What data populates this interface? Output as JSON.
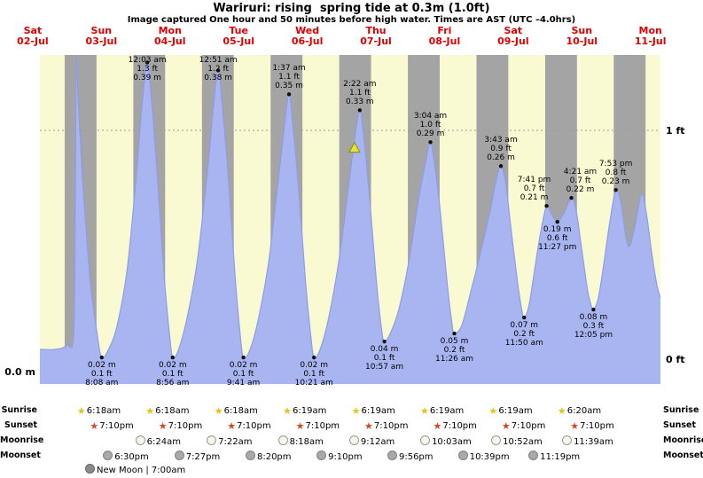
{
  "title": "Wariruri: rising  spring tide at 0.3m (1.0ft)",
  "subtitle": "Image captured One hour and 50 minutes before high water. Times are AST (UTC –4.0hrs)",
  "axis": {
    "left_zero": "0.0 m",
    "right_one_ft": "1 ft",
    "right_zero_ft": "0 ft"
  },
  "days": [
    {
      "name": "Sat",
      "date": "02-Jul"
    },
    {
      "name": "Sun",
      "date": "03-Jul"
    },
    {
      "name": "Mon",
      "date": "04-Jul"
    },
    {
      "name": "Tue",
      "date": "05-Jul"
    },
    {
      "name": "Wed",
      "date": "06-Jul"
    },
    {
      "name": "Thu",
      "date": "07-Jul"
    },
    {
      "name": "Fri",
      "date": "08-Jul"
    },
    {
      "name": "Sat",
      "date": "09-Jul"
    },
    {
      "name": "Sun",
      "date": "10-Jul"
    },
    {
      "name": "Mon",
      "date": "11-Jul"
    }
  ],
  "chart_data": {
    "type": "area",
    "title": "Wariruri: rising spring tide at 0.3m (1.0ft)",
    "x_axis": {
      "unit": "days",
      "labels": [
        "Sat 02-Jul",
        "Sun 03-Jul",
        "Mon 04-Jul",
        "Tue 05-Jul",
        "Wed 06-Jul",
        "Thu 07-Jul",
        "Fri 08-Jul",
        "Sat 09-Jul",
        "Sun 10-Jul",
        "Mon 11-Jul"
      ]
    },
    "y_axis": {
      "left_unit": "m",
      "right_unit": "ft",
      "left_ticks": [
        "0.0 m"
      ],
      "right_ticks": [
        "1 ft",
        "0 ft"
      ],
      "range_m": [
        0,
        0.41
      ]
    },
    "x_domain_hours_from_sat02_midnight": [
      10.5,
      227.5
    ],
    "high_tides": [
      {
        "day": 2,
        "date": "04-Jul",
        "time": "12:03 am",
        "ft": "1.3 ft",
        "m": "0.39 m",
        "height_m": 0.39
      },
      {
        "day": 3,
        "date": "05-Jul",
        "time": "12:51 am",
        "ft": "1.2 ft",
        "m": "0.38 m",
        "height_m": 0.38
      },
      {
        "day": 4,
        "date": "06-Jul",
        "time": "1:37 am",
        "ft": "1.1 ft",
        "m": "0.35 m",
        "height_m": 0.35
      },
      {
        "day": 5,
        "date": "07-Jul",
        "time": "2:22 am",
        "ft": "1.1 ft",
        "m": "0.33 m",
        "height_m": 0.33
      },
      {
        "day": 6,
        "date": "08-Jul",
        "time": "3:04 am",
        "ft": "1.0 ft",
        "m": "0.29 m",
        "height_m": 0.29
      },
      {
        "day": 7,
        "date": "09-Jul",
        "time": "3:43 am",
        "ft": "0.9 ft",
        "m": "0.26 m",
        "height_m": 0.26
      },
      {
        "day": 7,
        "date": "09-Jul",
        "time": "7:41 pm",
        "ft": "0.7 ft",
        "m": "0.21 m",
        "height_m": 0.21
      },
      {
        "day": 8,
        "date": "10-Jul",
        "time": "4:21 am",
        "ft": "0.7 ft",
        "m": "0.22 m",
        "height_m": 0.22
      },
      {
        "day": 8,
        "date": "10-Jul",
        "time": "7:53 pm",
        "ft": "0.8 ft",
        "m": "0.23 m",
        "height_m": 0.23
      }
    ],
    "low_tides": [
      {
        "day": 1,
        "date": "03-Jul",
        "time": "8:08 am",
        "ft": "0.1 ft",
        "m": "0.02 m",
        "height_m": 0.02
      },
      {
        "day": 2,
        "date": "04-Jul",
        "time": "8:56 am",
        "ft": "0.1 ft",
        "m": "0.02 m",
        "height_m": 0.02
      },
      {
        "day": 3,
        "date": "05-Jul",
        "time": "9:41 am",
        "ft": "0.1 ft",
        "m": "0.02 m",
        "height_m": 0.02
      },
      {
        "day": 4,
        "date": "06-Jul",
        "time": "10:21 am",
        "ft": "0.1 ft",
        "m": "0.02 m",
        "height_m": 0.02
      },
      {
        "day": 5,
        "date": "07-Jul",
        "time": "10:57 am",
        "ft": "0.1 ft",
        "m": "0.04 m",
        "height_m": 0.04
      },
      {
        "day": 6,
        "date": "08-Jul",
        "time": "11:26 am",
        "ft": "0.2 ft",
        "m": "0.05 m",
        "height_m": 0.05
      },
      {
        "day": 7,
        "date": "09-Jul",
        "time": "11:50 am",
        "ft": "0.2 ft",
        "m": "0.07 m",
        "height_m": 0.07
      },
      {
        "day": 7,
        "date": "09-Jul",
        "time": "11:27 pm",
        "ft": "0.6 ft",
        "m": "0.19 m",
        "height_m": 0.19
      },
      {
        "day": 8,
        "date": "10-Jul",
        "time": "12:05 pm",
        "ft": "0.3 ft",
        "m": "0.08 m",
        "height_m": 0.08
      }
    ],
    "capture_marker": {
      "hour": 120.53,
      "height_m": 0.283,
      "note": "1h50m before 2:22 am high water"
    },
    "curve_points_hour_m": [
      [
        10.5,
        0.03
      ],
      [
        16,
        0.03
      ],
      [
        20,
        0.035
      ],
      [
        22.3,
        0.05
      ],
      [
        22.9,
        0.22
      ],
      [
        23.22,
        0.395
      ],
      [
        23.9,
        0.34
      ],
      [
        25.5,
        0.24
      ],
      [
        28,
        0.12
      ],
      [
        30.5,
        0.05
      ],
      [
        32.13,
        0.02
      ],
      [
        34.5,
        0.03
      ],
      [
        37.5,
        0.06
      ],
      [
        41,
        0.13
      ],
      [
        44,
        0.24
      ],
      [
        46.3,
        0.34
      ],
      [
        48.05,
        0.39
      ],
      [
        49.5,
        0.345
      ],
      [
        51.5,
        0.25
      ],
      [
        54,
        0.12
      ],
      [
        55.8,
        0.05
      ],
      [
        56.93,
        0.02
      ],
      [
        59,
        0.03
      ],
      [
        62,
        0.07
      ],
      [
        65.5,
        0.14
      ],
      [
        69,
        0.25
      ],
      [
        71.2,
        0.335
      ],
      [
        72.85,
        0.38
      ],
      [
        74.3,
        0.335
      ],
      [
        76.3,
        0.25
      ],
      [
        78.8,
        0.12
      ],
      [
        80.5,
        0.05
      ],
      [
        81.68,
        0.02
      ],
      [
        84,
        0.03
      ],
      [
        87,
        0.07
      ],
      [
        90.5,
        0.14
      ],
      [
        93.8,
        0.24
      ],
      [
        96,
        0.31
      ],
      [
        97.62,
        0.35
      ],
      [
        99,
        0.31
      ],
      [
        101,
        0.23
      ],
      [
        103.5,
        0.11
      ],
      [
        105.3,
        0.045
      ],
      [
        106.35,
        0.02
      ],
      [
        108.5,
        0.03
      ],
      [
        111.5,
        0.07
      ],
      [
        115,
        0.14
      ],
      [
        118.3,
        0.23
      ],
      [
        120.6,
        0.295
      ],
      [
        122.37,
        0.33
      ],
      [
        123.8,
        0.295
      ],
      [
        125.8,
        0.22
      ],
      [
        128.3,
        0.11
      ],
      [
        130,
        0.055
      ],
      [
        130.95,
        0.04
      ],
      [
        133,
        0.05
      ],
      [
        136,
        0.08
      ],
      [
        139.5,
        0.14
      ],
      [
        143,
        0.22
      ],
      [
        145.4,
        0.265
      ],
      [
        147.07,
        0.29
      ],
      [
        148.6,
        0.26
      ],
      [
        150.6,
        0.2
      ],
      [
        153,
        0.11
      ],
      [
        154.7,
        0.06
      ],
      [
        155.43,
        0.05
      ],
      [
        158,
        0.06
      ],
      [
        161,
        0.1
      ],
      [
        164.5,
        0.15
      ],
      [
        168,
        0.205
      ],
      [
        170.2,
        0.245
      ],
      [
        171.72,
        0.26
      ],
      [
        173.3,
        0.24
      ],
      [
        175.3,
        0.18
      ],
      [
        177.5,
        0.115
      ],
      [
        179,
        0.08
      ],
      [
        179.83,
        0.07
      ],
      [
        181.5,
        0.085
      ],
      [
        183.5,
        0.13
      ],
      [
        185.5,
        0.175
      ],
      [
        187.68,
        0.21
      ],
      [
        189.4,
        0.2
      ],
      [
        191.45,
        0.19
      ],
      [
        193.6,
        0.2
      ],
      [
        196.35,
        0.22
      ],
      [
        198,
        0.205
      ],
      [
        200,
        0.155
      ],
      [
        202,
        0.105
      ],
      [
        203.3,
        0.085
      ],
      [
        204.08,
        0.08
      ],
      [
        205.8,
        0.095
      ],
      [
        207.8,
        0.14
      ],
      [
        209.8,
        0.19
      ],
      [
        211.88,
        0.23
      ],
      [
        213.6,
        0.215
      ],
      [
        215.5,
        0.17
      ],
      [
        216.8,
        0.16
      ],
      [
        218.6,
        0.185
      ],
      [
        220.9,
        0.225
      ],
      [
        222.6,
        0.2
      ],
      [
        224.5,
        0.15
      ],
      [
        226.3,
        0.11
      ],
      [
        227.5,
        0.095
      ]
    ]
  },
  "almanac": {
    "sunrise": {
      "label": "Sunrise",
      "events": [
        {
          "day": 1,
          "time": "6:18am"
        },
        {
          "day": 2,
          "time": "6:18am"
        },
        {
          "day": 3,
          "time": "6:18am"
        },
        {
          "day": 4,
          "time": "6:19am"
        },
        {
          "day": 5,
          "time": "6:19am"
        },
        {
          "day": 6,
          "time": "6:19am"
        },
        {
          "day": 7,
          "time": "6:19am"
        },
        {
          "day": 8,
          "time": "6:20am"
        }
      ]
    },
    "sunset": {
      "label": "Sunset",
      "events": [
        {
          "day": 1,
          "time": "7:10pm"
        },
        {
          "day": 2,
          "time": "7:10pm"
        },
        {
          "day": 3,
          "time": "7:10pm"
        },
        {
          "day": 4,
          "time": "7:10pm"
        },
        {
          "day": 5,
          "time": "7:10pm"
        },
        {
          "day": 6,
          "time": "7:10pm"
        },
        {
          "day": 7,
          "time": "7:10pm"
        },
        {
          "day": 8,
          "time": "7:10pm"
        }
      ]
    },
    "moonrise": {
      "label": "Moonrise",
      "events": [
        {
          "day": 2,
          "time": "6:24am"
        },
        {
          "day": 3,
          "time": "7:22am"
        },
        {
          "day": 4,
          "time": "8:18am"
        },
        {
          "day": 5,
          "time": "9:12am"
        },
        {
          "day": 6,
          "time": "10:03am"
        },
        {
          "day": 7,
          "time": "10:52am"
        },
        {
          "day": 8,
          "time": "11:39am"
        }
      ]
    },
    "moonset": {
      "label": "Moonset",
      "events": [
        {
          "day": 1,
          "time": "6:30pm"
        },
        {
          "day": 2,
          "time": "7:27pm"
        },
        {
          "day": 3,
          "time": "8:20pm"
        },
        {
          "day": 4,
          "time": "9:10pm"
        },
        {
          "day": 5,
          "time": "9:56pm"
        },
        {
          "day": 6,
          "time": "10:39pm"
        },
        {
          "day": 7,
          "time": "11:19pm"
        }
      ]
    },
    "new_moon_label": "New Moon | 7:00am"
  },
  "colors": {
    "night_band": "#a4a4a4",
    "day_band": "#fafad2",
    "tide_fill": "#a9b5f0",
    "tide_stroke": "#8e9ce8",
    "day_label": "#e00000",
    "grid": "#9b9b9b",
    "sunrise_star": "#e2c21b",
    "sunset_star": "#d24a1e",
    "moonrise_circle": "#f6f6ea",
    "moonset_circle": "#a9a9a9",
    "new_moon_circle": "#8a8a8a",
    "marker_fill": "#e2e23a",
    "marker_stroke": "#8f8f00"
  }
}
